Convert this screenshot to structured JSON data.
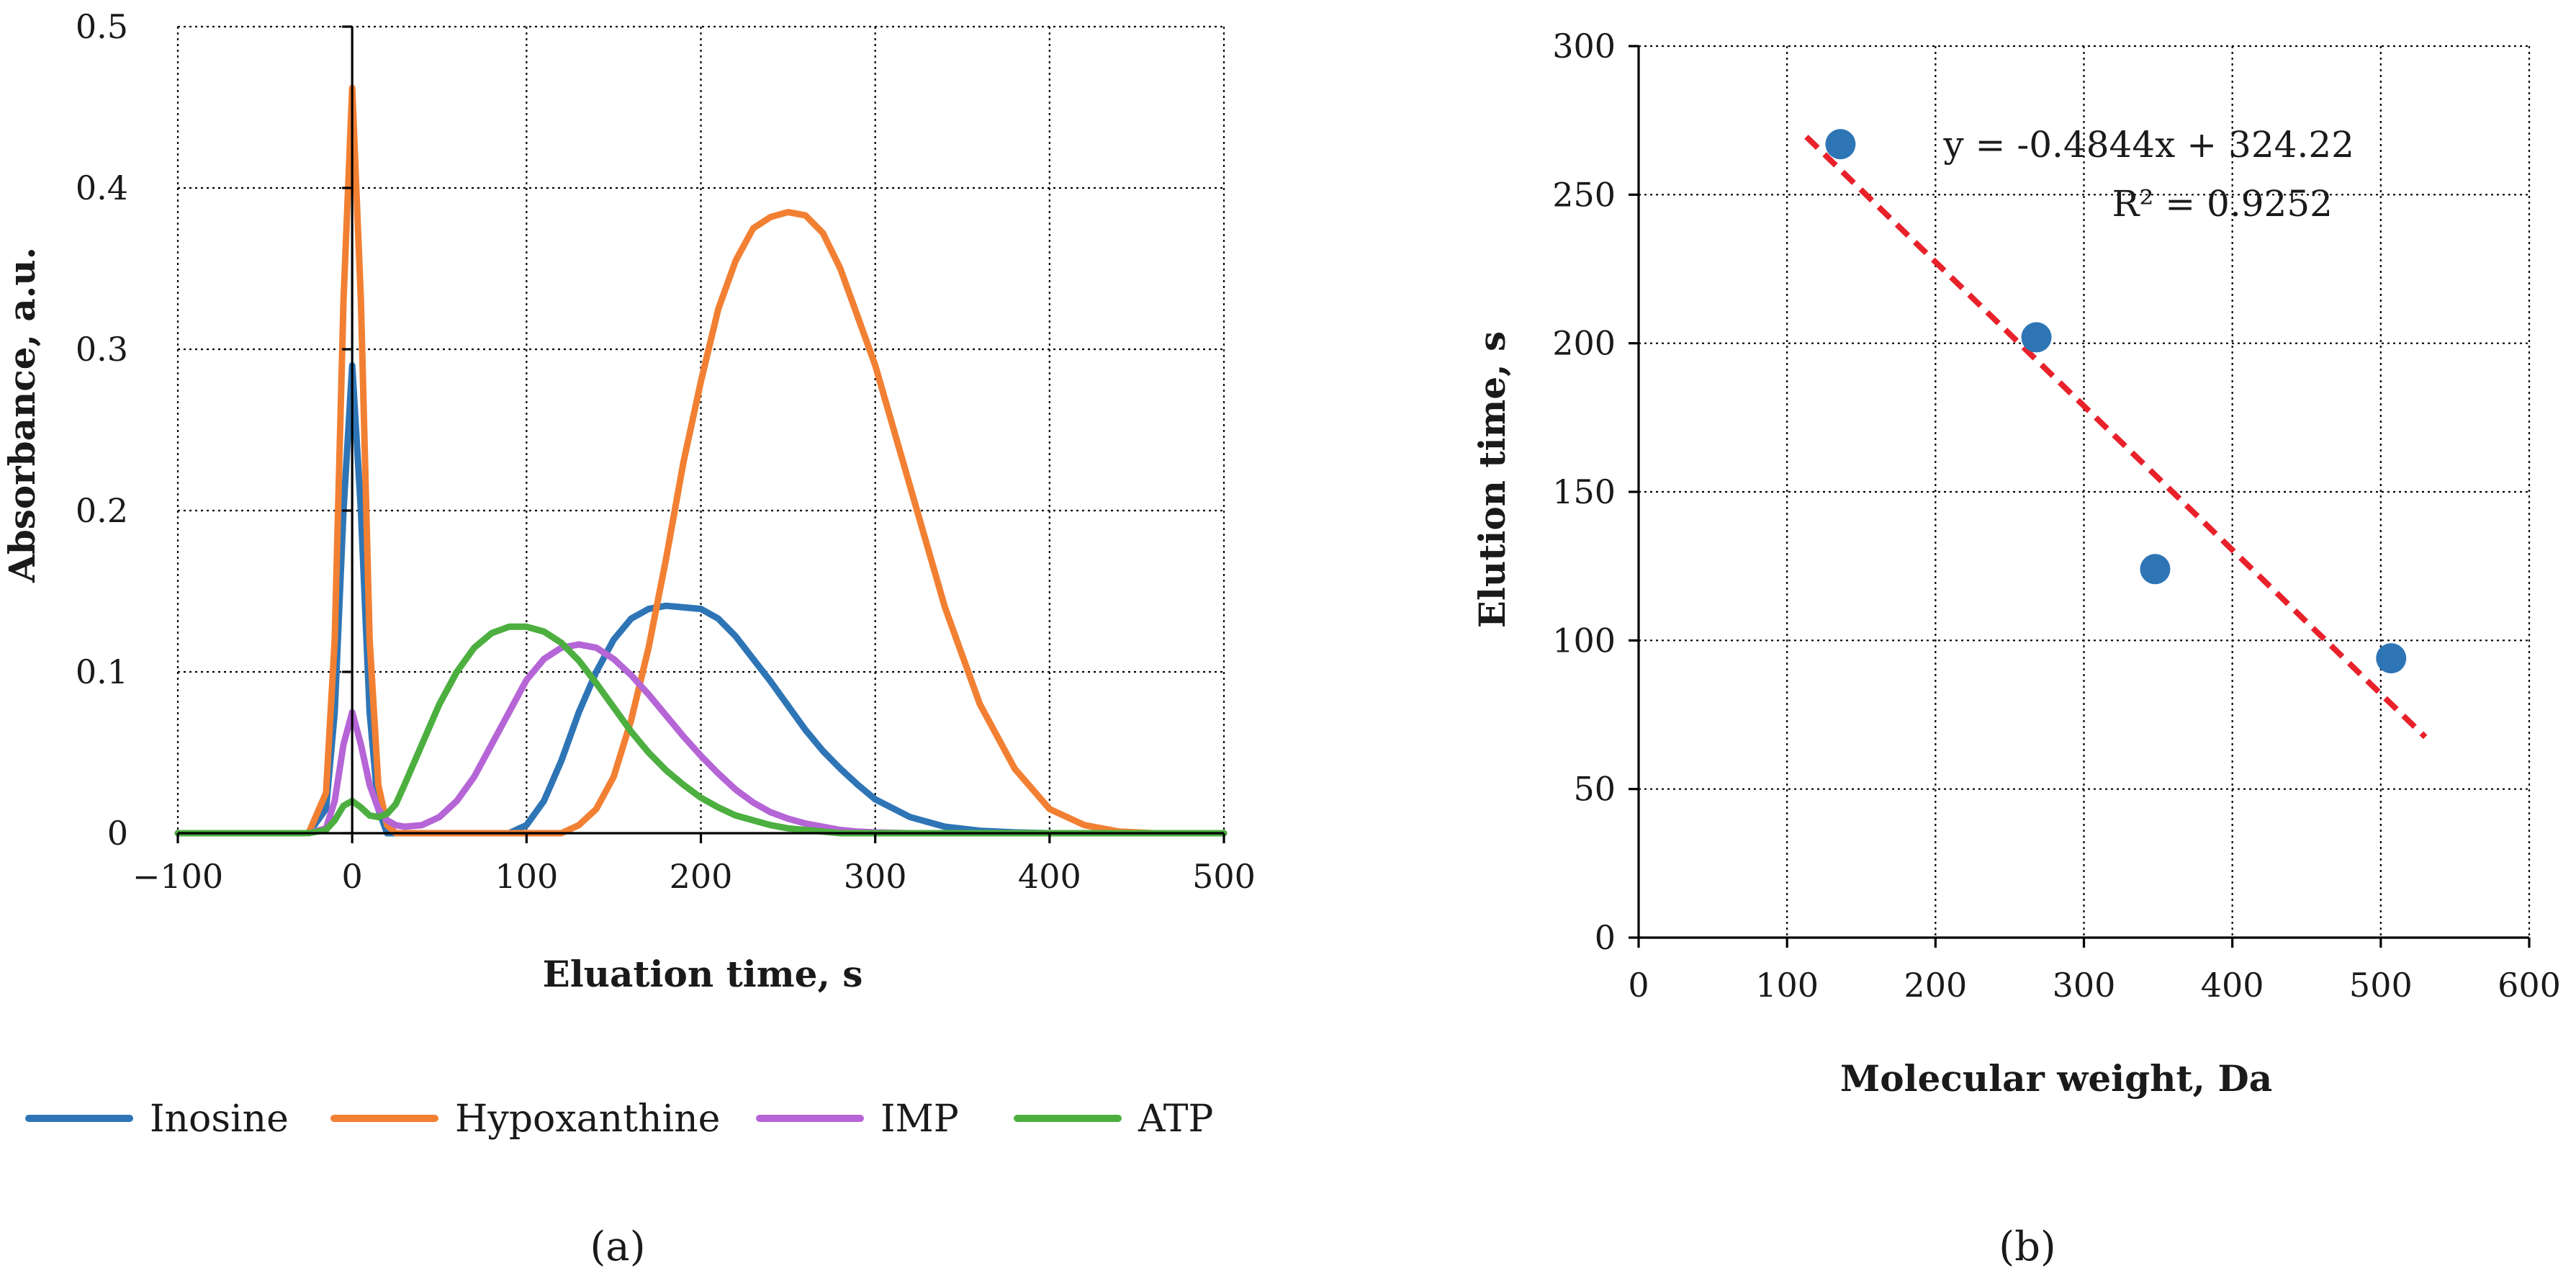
{
  "chart_data": [
    {
      "panel_label": "(a)",
      "type": "line",
      "xlabel": "Eluation time, s",
      "ylabel": "Absorbance, a.u.",
      "xlim": [
        -100,
        500
      ],
      "ylim": [
        0,
        0.5
      ],
      "x_tick_labels": [
        "−100",
        "0",
        "100",
        "200",
        "300",
        "400",
        "500"
      ],
      "x_tick_values": [
        -100,
        0,
        100,
        200,
        300,
        400,
        500
      ],
      "y_tick_labels": [
        "0",
        "0.1",
        "0.2",
        "0.3",
        "0.4",
        "0.5"
      ],
      "y_tick_values": [
        0,
        0.1,
        0.2,
        0.3,
        0.4,
        0.5
      ],
      "grid": true,
      "legend_position": "bottom",
      "x": [
        -100,
        -25,
        -15,
        -10,
        -5,
        0,
        5,
        10,
        15,
        20,
        25,
        30,
        40,
        50,
        60,
        70,
        80,
        90,
        100,
        110,
        120,
        130,
        140,
        150,
        160,
        170,
        180,
        190,
        200,
        210,
        220,
        230,
        240,
        250,
        260,
        270,
        280,
        290,
        300,
        320,
        340,
        360,
        380,
        400,
        420,
        440,
        460,
        480,
        500
      ],
      "series": [
        {
          "name": "Inosine",
          "color": "#2E75B6",
          "values": [
            0,
            0,
            0.015,
            0.075,
            0.2,
            0.29,
            0.2,
            0.075,
            0.015,
            0,
            0,
            0,
            0,
            0,
            0,
            0,
            0,
            0,
            0.005,
            0.02,
            0.045,
            0.075,
            0.1,
            0.12,
            0.133,
            0.139,
            0.141,
            0.14,
            0.139,
            0.133,
            0.122,
            0.108,
            0.094,
            0.079,
            0.064,
            0.051,
            0.04,
            0.03,
            0.021,
            0.01,
            0.004,
            0.0015,
            0.0005,
            0,
            0,
            0,
            0,
            0,
            0
          ]
        },
        {
          "name": "Hypoxanthine",
          "color": "#F28033",
          "values": [
            0,
            0,
            0.025,
            0.12,
            0.33,
            0.462,
            0.33,
            0.12,
            0.03,
            0.005,
            0,
            0,
            0,
            0,
            0,
            0,
            0,
            0,
            0,
            0,
            0,
            0.005,
            0.015,
            0.035,
            0.07,
            0.115,
            0.17,
            0.23,
            0.28,
            0.325,
            0.355,
            0.375,
            0.382,
            0.385,
            0.383,
            0.372,
            0.35,
            0.32,
            0.29,
            0.215,
            0.14,
            0.08,
            0.04,
            0.015,
            0.005,
            0.001,
            0,
            0,
            0
          ]
        },
        {
          "name": "IMP",
          "color": "#B565D6",
          "values": [
            0,
            0,
            0.003,
            0.02,
            0.055,
            0.075,
            0.055,
            0.03,
            0.015,
            0.008,
            0.005,
            0.004,
            0.005,
            0.01,
            0.02,
            0.035,
            0.055,
            0.075,
            0.095,
            0.108,
            0.115,
            0.117,
            0.115,
            0.108,
            0.098,
            0.086,
            0.073,
            0.06,
            0.048,
            0.037,
            0.027,
            0.019,
            0.013,
            0.009,
            0.006,
            0.004,
            0.002,
            0.001,
            0.0005,
            0,
            0,
            0,
            0,
            0,
            0,
            0,
            0,
            0,
            0
          ]
        },
        {
          "name": "ATP",
          "color": "#4CAF3F",
          "values": [
            0,
            0,
            0.002,
            0.008,
            0.017,
            0.02,
            0.016,
            0.011,
            0.01,
            0.012,
            0.018,
            0.03,
            0.055,
            0.08,
            0.1,
            0.115,
            0.124,
            0.128,
            0.128,
            0.125,
            0.118,
            0.107,
            0.093,
            0.078,
            0.063,
            0.05,
            0.039,
            0.03,
            0.022,
            0.016,
            0.011,
            0.008,
            0.005,
            0.003,
            0.002,
            0.001,
            0,
            0,
            0,
            0,
            0,
            0,
            0,
            0,
            0,
            0,
            0,
            0,
            0
          ]
        }
      ]
    },
    {
      "panel_label": "(b)",
      "type": "scatter",
      "xlabel": "Molecular weight, Da",
      "ylabel": "Elution time, s",
      "xlim": [
        0,
        600
      ],
      "ylim": [
        0,
        300
      ],
      "x_tick_labels": [
        "0",
        "100",
        "200",
        "300",
        "400",
        "500",
        "600"
      ],
      "x_tick_values": [
        0,
        100,
        200,
        300,
        400,
        500,
        600
      ],
      "y_tick_labels": [
        "0",
        "50",
        "100",
        "150",
        "200",
        "250",
        "300"
      ],
      "y_tick_values": [
        0,
        50,
        100,
        150,
        200,
        250,
        300
      ],
      "grid": true,
      "points": [
        {
          "x": 136,
          "y": 267
        },
        {
          "x": 268,
          "y": 202
        },
        {
          "x": 348,
          "y": 124
        },
        {
          "x": 507,
          "y": 94
        }
      ],
      "point_color": "#2E75B6",
      "trendline": {
        "slope": -0.4844,
        "intercept": 324.22,
        "x_range": [
          113,
          530
        ],
        "color": "#E8212A",
        "equation": "y = -0.4844x + 324.22",
        "r_squared": "R² = 0.9252"
      }
    }
  ]
}
